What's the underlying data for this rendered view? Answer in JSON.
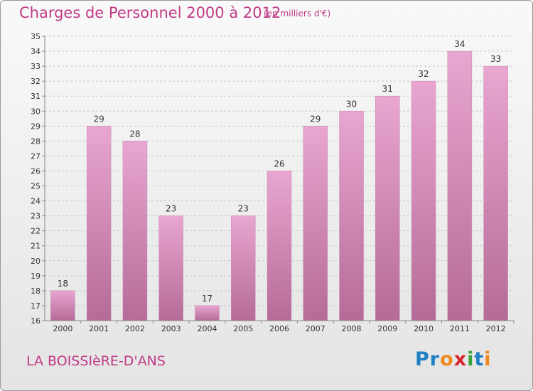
{
  "title": "Charges de Personnel 2000 à 2012",
  "subtitle": "(en milliers d'€)",
  "commune": "LA BOISSIèRE-D'ANS",
  "logo": {
    "text": "Proxiti",
    "letter_colors": [
      "#1f80c3",
      "#1f80c3",
      "#f08a1c",
      "#d7262e",
      "#37a33a",
      "#1f80c3",
      "#f08a1c"
    ]
  },
  "colors": {
    "title": "#c03a86",
    "bar_top": "#e8a6d1",
    "bar_bottom": "#b56b97",
    "grid": "#c8c8c8",
    "axis_text": "#333333"
  },
  "chart_data": {
    "type": "bar",
    "title": "Charges de Personnel 2000 à 2012",
    "subtitle": "(en milliers d'€)",
    "categories": [
      "2000",
      "2001",
      "2002",
      "2003",
      "2004",
      "2005",
      "2006",
      "2007",
      "2008",
      "2009",
      "2010",
      "2011",
      "2012"
    ],
    "values": [
      18,
      29,
      28,
      23,
      17,
      23,
      26,
      29,
      30,
      31,
      32,
      34,
      33
    ],
    "ylim": [
      16,
      35
    ],
    "yticks": [
      16,
      17,
      18,
      19,
      20,
      21,
      22,
      23,
      24,
      25,
      26,
      27,
      28,
      29,
      30,
      31,
      32,
      33,
      34,
      35
    ],
    "grid": true,
    "legend": false
  }
}
